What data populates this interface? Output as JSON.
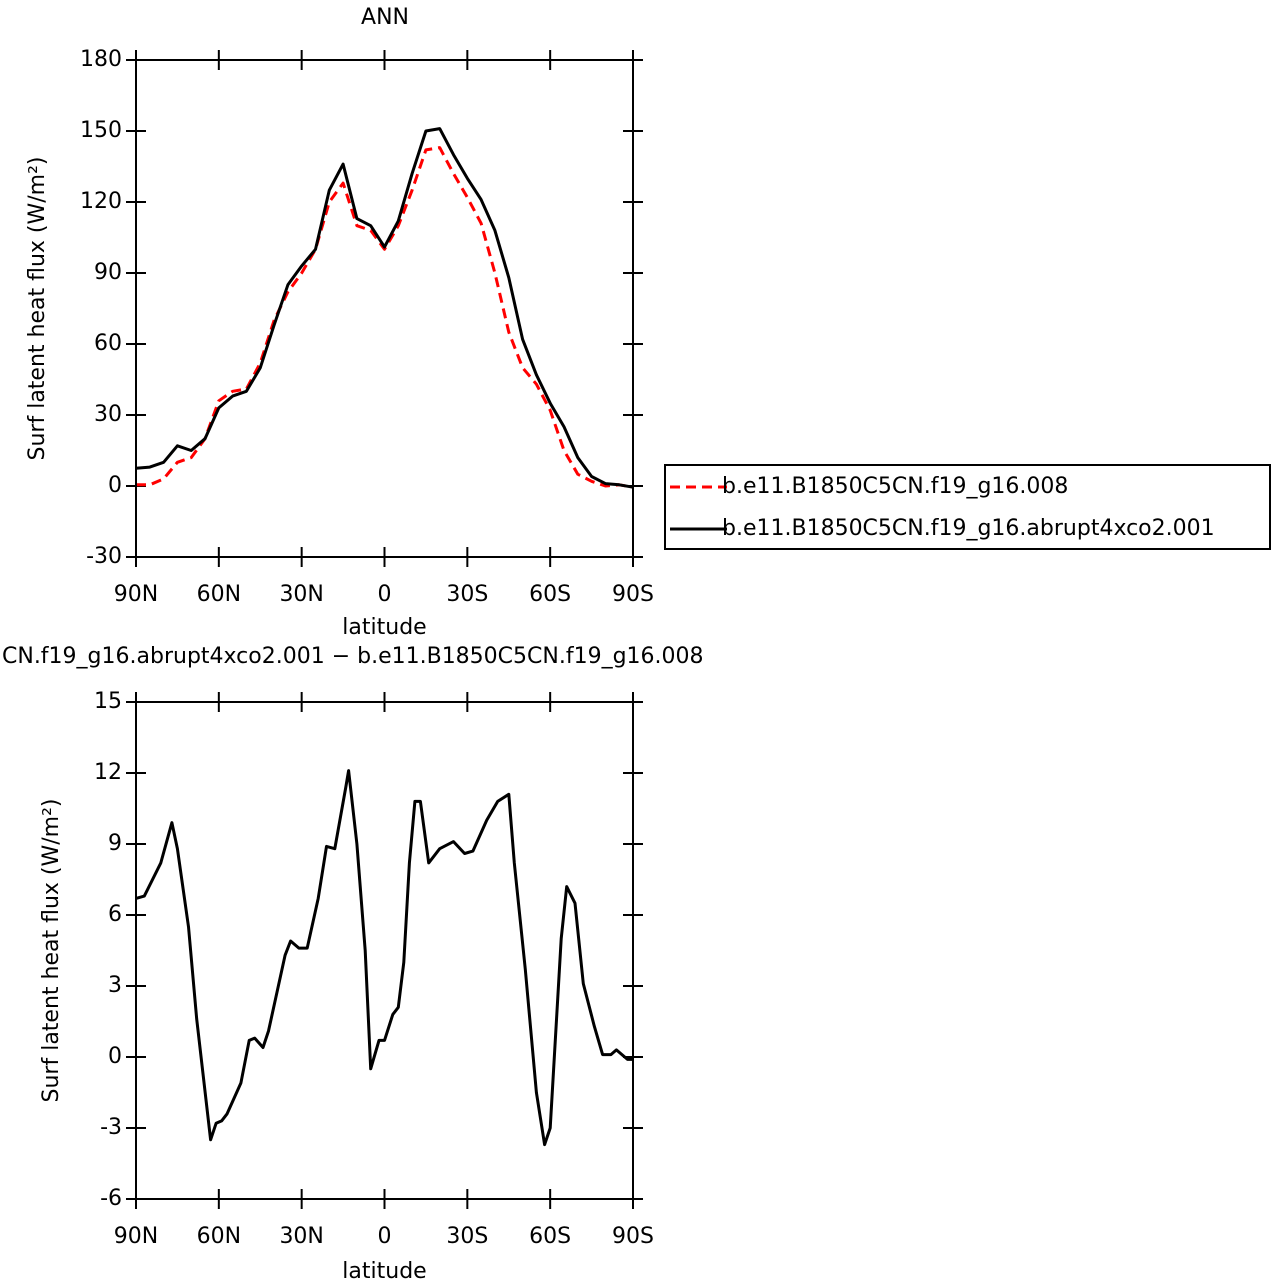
{
  "chart_data": [
    {
      "type": "line",
      "title": "ANN",
      "xlabel": "latitude",
      "ylabel": "Surf latent heat flux (W/m²)",
      "x": [
        90,
        85,
        80,
        75,
        70,
        65,
        60,
        55,
        50,
        45,
        40,
        35,
        30,
        25,
        20,
        15,
        10,
        5,
        0,
        -5,
        -10,
        -15,
        -20,
        -25,
        -30,
        -35,
        -40,
        -45,
        -50,
        -55,
        -60,
        -65,
        -70,
        -75,
        -80,
        -85,
        -90
      ],
      "series": [
        {
          "name": "b.e11.B1850C5CN.f19_g16.008",
          "color": "#ff0000",
          "dashed": true,
          "values": [
            0.5,
            0.5,
            3,
            10,
            12,
            20,
            36,
            40,
            41,
            52,
            70,
            82,
            90,
            100,
            120,
            128,
            110,
            108,
            100,
            110,
            125,
            142,
            143,
            132,
            122,
            111,
            90,
            65,
            50,
            43,
            32,
            15,
            5,
            2,
            0,
            0.5,
            -0.5
          ]
        },
        {
          "name": "b.e11.B1850C5CN.f19_g16.abrupt4xco2.001",
          "color": "#000000",
          "dashed": false,
          "values": [
            7.5,
            8,
            10,
            17,
            15,
            20,
            33,
            38,
            40,
            50,
            68,
            85,
            93,
            100,
            125,
            136,
            113,
            110,
            101,
            112,
            132,
            150,
            151,
            140,
            130,
            121,
            108,
            88,
            62,
            47,
            35,
            25,
            12,
            4,
            1,
            0.5,
            -0.5
          ]
        }
      ],
      "xlim": [
        90,
        -90
      ],
      "xticks": [
        {
          "value": 90,
          "label": "90N"
        },
        {
          "value": 60,
          "label": "60N"
        },
        {
          "value": 30,
          "label": "30N"
        },
        0,
        {
          "value": -30,
          "label": "30S"
        },
        {
          "value": -60,
          "label": "60S"
        },
        {
          "value": -90,
          "label": "90S"
        }
      ],
      "ylim": [
        -30,
        180
      ],
      "yticks": [
        -30,
        0,
        30,
        60,
        90,
        120,
        150,
        180
      ]
    },
    {
      "type": "line",
      "title": "CN.f19_g16.abrupt4xco2.001 − b.e11.B1850C5CN.f19_g16.008",
      "xlabel": "latitude",
      "ylabel": "Surf latent heat flux (W/m²)",
      "x": [
        90,
        87,
        81,
        77,
        75,
        71,
        68,
        63,
        61,
        59,
        57,
        52,
        49,
        47,
        44,
        42,
        36,
        34,
        31,
        28,
        24,
        21,
        18,
        14,
        13,
        10,
        7,
        5,
        2,
        0,
        -3,
        -5,
        -7,
        -9,
        -11,
        -13,
        -16,
        -20,
        -25,
        -29,
        -32,
        -37,
        -41,
        -45,
        -47,
        -51,
        -55,
        -58,
        -60,
        -64,
        -66,
        -69,
        -72,
        -76,
        -79,
        -82,
        -84,
        -88,
        -90
      ],
      "values": [
        6.7,
        6.8,
        8.2,
        9.9,
        8.8,
        5.5,
        1.6,
        -3.5,
        -2.8,
        -2.7,
        -2.4,
        -1.1,
        0.7,
        0.8,
        0.4,
        1.1,
        4.3,
        4.9,
        4.6,
        4.6,
        6.7,
        8.9,
        8.8,
        11.4,
        12.1,
        9.0,
        4.5,
        -0.5,
        0.7,
        0.7,
        1.8,
        2.1,
        4.0,
        8.2,
        10.8,
        10.8,
        8.2,
        8.8,
        9.1,
        8.6,
        8.7,
        10.0,
        10.8,
        11.1,
        8.2,
        3.7,
        -1.5,
        -3.7,
        -3.0,
        5.0,
        7.2,
        6.5,
        3.1,
        1.3,
        0.1,
        0.1,
        0.3,
        -0.1,
        -0.1
      ],
      "color": "#000000",
      "xlim": [
        90,
        -90
      ],
      "xticks": [
        {
          "value": 90,
          "label": "90N"
        },
        {
          "value": 60,
          "label": "60N"
        },
        {
          "value": 30,
          "label": "30N"
        },
        0,
        {
          "value": -30,
          "label": "30S"
        },
        {
          "value": -60,
          "label": "60S"
        },
        {
          "value": -90,
          "label": "90S"
        }
      ],
      "ylim": [
        -6,
        15
      ],
      "yticks": [
        -6,
        -3,
        0,
        3,
        6,
        9,
        12,
        15
      ]
    }
  ]
}
